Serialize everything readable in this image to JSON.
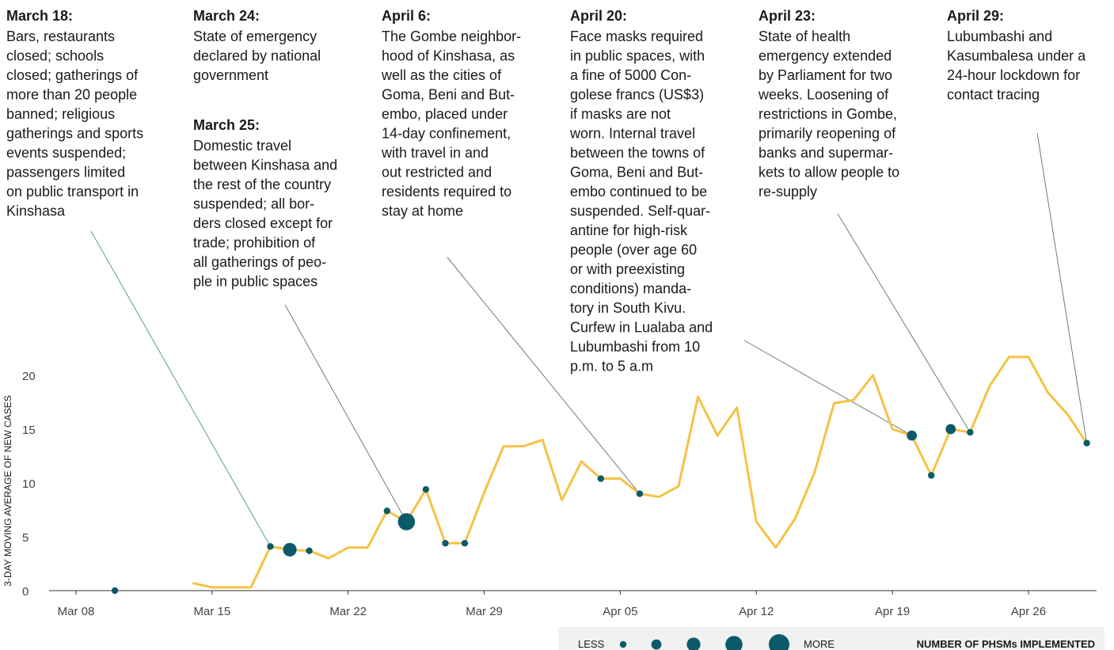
{
  "chart_data": {
    "type": "line",
    "y_label": "3-DAY MOVING AVERAGE OF NEW CASES",
    "color": "#f6c244",
    "point_color": "#0b5a6a",
    "x": [
      "Mar 08",
      "Mar 09",
      "Mar 10",
      "Mar 11",
      "Mar 12",
      "Mar 13",
      "Mar 14",
      "Mar 15",
      "Mar 16",
      "Mar 17",
      "Mar 18",
      "Mar 19",
      "Mar 20",
      "Mar 21",
      "Mar 22",
      "Mar 23",
      "Mar 24",
      "Mar 25",
      "Mar 26",
      "Mar 27",
      "Mar 28",
      "Mar 29",
      "Mar 30",
      "Mar 31",
      "Apr 01",
      "Apr 02",
      "Apr 03",
      "Apr 04",
      "Apr 05",
      "Apr 06",
      "Apr 07",
      "Apr 08",
      "Apr 09",
      "Apr 10",
      "Apr 11",
      "Apr 12",
      "Apr 13",
      "Apr 14",
      "Apr 15",
      "Apr 16",
      "Apr 17",
      "Apr 18",
      "Apr 19",
      "Apr 20",
      "Apr 21",
      "Apr 22",
      "Apr 23",
      "Apr 24",
      "Apr 25",
      "Apr 26",
      "Apr 27",
      "Apr 28",
      "Apr 29"
    ],
    "values": [
      null,
      null,
      null,
      null,
      null,
      null,
      0.7,
      0.3,
      0.3,
      0.3,
      4.1,
      3.8,
      3.7,
      3.0,
      4.0,
      4.0,
      7.4,
      6.4,
      9.4,
      4.4,
      4.4,
      9.1,
      13.4,
      13.4,
      14.0,
      8.4,
      12.0,
      10.4,
      10.4,
      9.0,
      8.7,
      9.7,
      18.0,
      14.4,
      17.0,
      6.4,
      4.0,
      6.7,
      11.0,
      17.4,
      17.7,
      20.0,
      15.0,
      14.4,
      10.7,
      15.0,
      14.7,
      19.0,
      21.7,
      21.7,
      18.4,
      16.4,
      13.7
    ],
    "ylim": [
      0,
      23.5
    ],
    "yticks": [
      0,
      5,
      10,
      15,
      20
    ],
    "xticks": [
      "Mar 08",
      "Mar 15",
      "Mar 22",
      "Mar 29",
      "Apr 05",
      "Apr 12",
      "Apr 19",
      "Apr 26"
    ],
    "points": [
      {
        "x": "Mar 10",
        "value": 0,
        "size": 1
      },
      {
        "x": "Mar 18",
        "value": 4.1,
        "size": 1
      },
      {
        "x": "Mar 19",
        "value": 3.8,
        "size": 3
      },
      {
        "x": "Mar 20",
        "value": 3.7,
        "size": 1
      },
      {
        "x": "Mar 24",
        "value": 7.4,
        "size": 1
      },
      {
        "x": "Mar 25",
        "value": 6.4,
        "size": 4
      },
      {
        "x": "Mar 26",
        "value": 9.4,
        "size": 1
      },
      {
        "x": "Mar 27",
        "value": 4.4,
        "size": 1
      },
      {
        "x": "Mar 28",
        "value": 4.4,
        "size": 1
      },
      {
        "x": "Apr 04",
        "value": 10.4,
        "size": 1
      },
      {
        "x": "Apr 06",
        "value": 9.0,
        "size": 1
      },
      {
        "x": "Apr 20",
        "value": 14.4,
        "size": 2
      },
      {
        "x": "Apr 21",
        "value": 10.7,
        "size": 1
      },
      {
        "x": "Apr 22",
        "value": 15.0,
        "size": 2
      },
      {
        "x": "Apr 23",
        "value": 14.7,
        "size": 1
      },
      {
        "x": "Apr 29",
        "value": 13.7,
        "size": 1
      }
    ],
    "size_legend": {
      "less": "LESS",
      "more": "MORE",
      "title": "NUMBER OF PHSMs IMPLEMENTED",
      "sizes": [
        1,
        2,
        3,
        4,
        5
      ]
    },
    "annotations": [
      {
        "date": "March 18:",
        "lines": [
          "Bars, restaurants",
          "closed; schools",
          "closed; gatherings of",
          "more than 20 people",
          "banned; religious",
          "gatherings and sports",
          "events suspended;",
          "passengers limited",
          "on public transport in",
          "Kinshasa"
        ]
      },
      {
        "date": "March 24:",
        "lines": [
          "State of emergency",
          "declared by national",
          "government"
        ]
      },
      {
        "date": "March 25:",
        "lines": [
          "Domestic travel",
          "between Kinshasa and",
          "the rest of the country",
          "suspended; all bor-",
          "ders closed except for",
          "trade; prohibition of",
          "all gatherings of peo-",
          "ple in public spaces"
        ]
      },
      {
        "date": "April 6:",
        "lines": [
          "The Gombe neighbor-",
          "hood of Kinshasa, as",
          "well as the cities of",
          "Goma, Beni and But-",
          "embo, placed under",
          "14-day confinement,",
          "with travel in and",
          "out restricted and",
          "residents required to",
          "stay at home"
        ]
      },
      {
        "date": "April 20:",
        "lines": [
          "Face masks required",
          "in public spaces, with",
          "a fine of 5000 Con-",
          "golese francs (US$3)",
          "if masks are not",
          "worn. Internal travel",
          "between the towns of",
          "Goma, Beni and But-",
          "embo continued to be",
          "suspended. Self-quar-",
          "antine for high-risk",
          "people (over age 60",
          "or with preexisting",
          "conditions) manda-",
          "tory in South Kivu.",
          "Curfew in Lualaba and",
          "Lubumbashi from 10",
          "p.m. to 5 a.m"
        ]
      },
      {
        "date": "April 23:",
        "lines": [
          "State of health",
          "emergency extended",
          "by Parliament for two",
          "weeks. Loosening of",
          "restrictions in Gombe,",
          "primarily reopening of",
          "banks and supermar-",
          "kets to allow people to",
          "re-supply"
        ]
      },
      {
        "date": "April 29:",
        "lines": [
          "Lubumbashi and",
          "Kasumbalesa under a",
          "24-hour lockdown for",
          "contact tracing"
        ]
      }
    ]
  }
}
